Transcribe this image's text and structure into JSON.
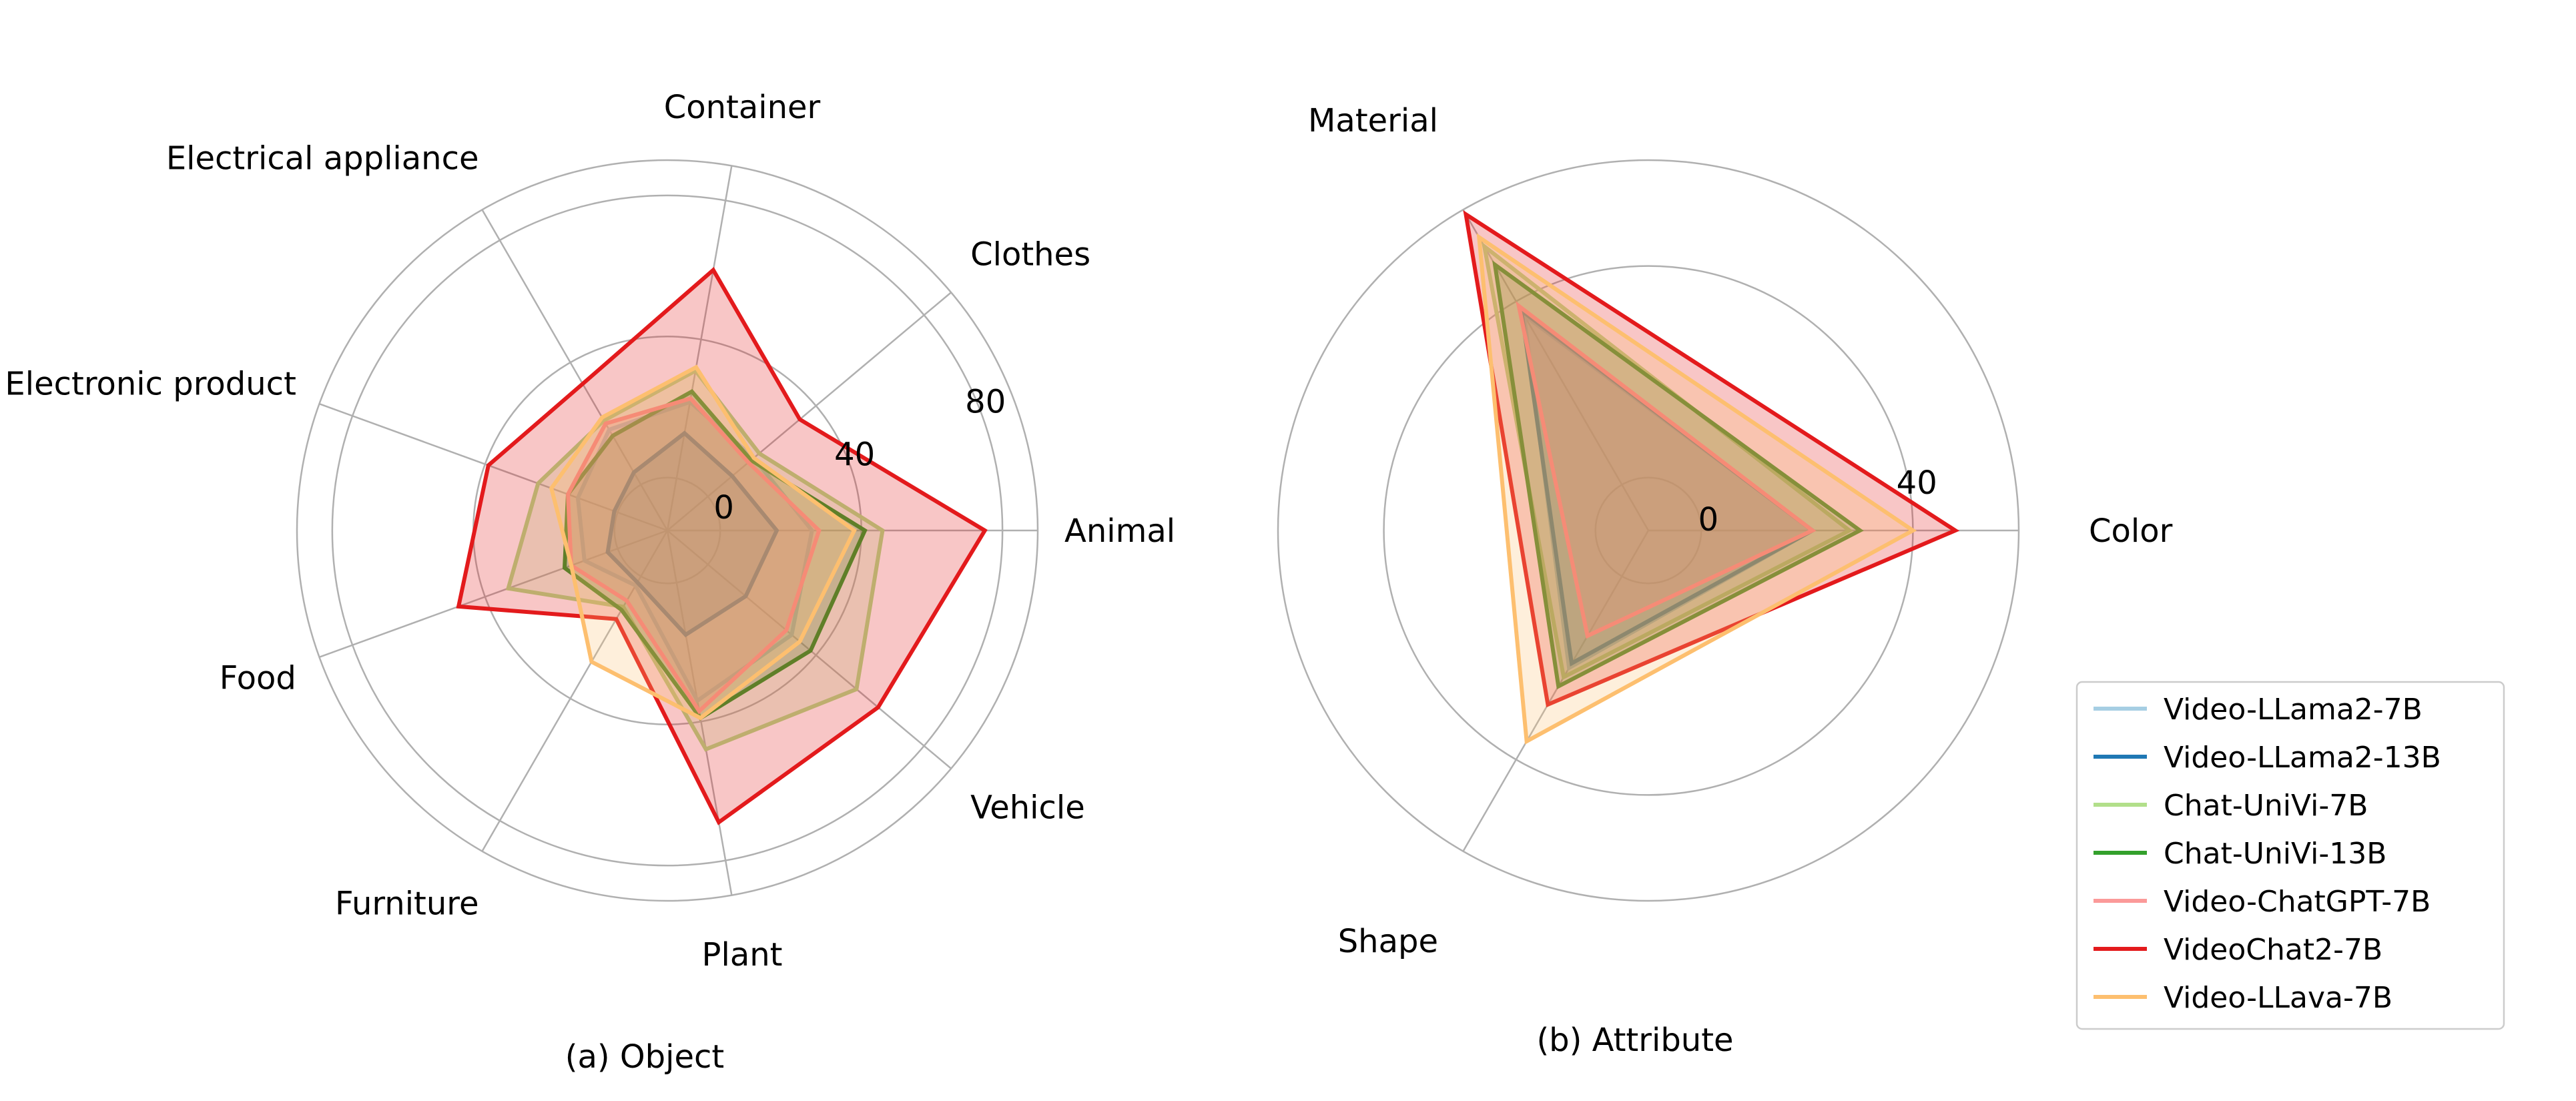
{
  "chart_data": [
    {
      "type": "radar",
      "title": "(a) Object",
      "categories": [
        "Animal",
        "Clothes",
        "Container",
        "Electrical appliance",
        "Electronic product",
        "Food",
        "Furniture",
        "Plant",
        "Vehicle"
      ],
      "rlim": [
        -15,
        90
      ],
      "rticks": [
        0,
        40,
        80
      ],
      "rtick_labels": [
        "0",
        "40",
        "80"
      ],
      "series": [
        {
          "name": "Video-LLama2-7B",
          "color": "#a6cee3",
          "values": [
            26,
            17,
            22,
            18,
            12,
            10,
            3,
            34,
            31
          ]
        },
        {
          "name": "Video-LLama2-13B",
          "color": "#1f78b4",
          "values": [
            16,
            9,
            13,
            4,
            1,
            3,
            2,
            15,
            14
          ]
        },
        {
          "name": "Chat-UniVi-7B",
          "color": "#b2df8a",
          "values": [
            46,
            19,
            31,
            21,
            24,
            33,
            10,
            48,
            55
          ]
        },
        {
          "name": "Chat-UniVi-13B",
          "color": "#33a02c",
          "values": [
            41,
            16,
            25,
            16,
            15,
            16,
            11,
            39,
            38
          ]
        },
        {
          "name": "Video-ChatGPT-7B",
          "color": "#fb9a99",
          "values": [
            28,
            15,
            23,
            20,
            15,
            14,
            8,
            37,
            29
          ]
        },
        {
          "name": "VideoChat2-7B",
          "color": "#e31a1c",
          "values": [
            75,
            34,
            60,
            33,
            39,
            48,
            14,
            69,
            63
          ]
        },
        {
          "name": "Video-LLava-7B",
          "color": "#fdbf6f",
          "values": [
            38,
            17,
            32,
            22,
            20,
            14,
            28,
            39,
            34
          ]
        }
      ]
    },
    {
      "type": "radar",
      "title": "(b) Attribute",
      "categories": [
        "Color",
        "Material",
        "Shape"
      ],
      "rlim": [
        -10,
        60
      ],
      "rticks": [
        0,
        40
      ],
      "rtick_labels": [
        "0",
        "40"
      ],
      "series": [
        {
          "name": "Video-LLama2-7B",
          "color": "#a6cee3",
          "values": [
            21,
            37,
            20
          ]
        },
        {
          "name": "Video-LLama2-13B",
          "color": "#1f78b4",
          "values": [
            21,
            38,
            19
          ]
        },
        {
          "name": "Chat-UniVi-7B",
          "color": "#b2df8a",
          "values": [
            28,
            52,
            22
          ]
        },
        {
          "name": "Chat-UniVi-13B",
          "color": "#33a02c",
          "values": [
            30,
            48,
            24
          ]
        },
        {
          "name": "Video-ChatGPT-7B",
          "color": "#fb9a99",
          "values": [
            21,
            39,
            13
          ]
        },
        {
          "name": "VideoChat2-7B",
          "color": "#e31a1c",
          "values": [
            48,
            59,
            28
          ]
        },
        {
          "name": "Video-LLava-7B",
          "color": "#fdbf6f",
          "values": [
            40,
            54,
            36
          ]
        }
      ]
    }
  ],
  "legend": {
    "placement": "right",
    "items": [
      "Video-LLama2-7B",
      "Video-LLama2-13B",
      "Chat-UniVi-7B",
      "Chat-UniVi-13B",
      "Video-ChatGPT-7B",
      "VideoChat2-7B",
      "Video-LLava-7B"
    ]
  }
}
